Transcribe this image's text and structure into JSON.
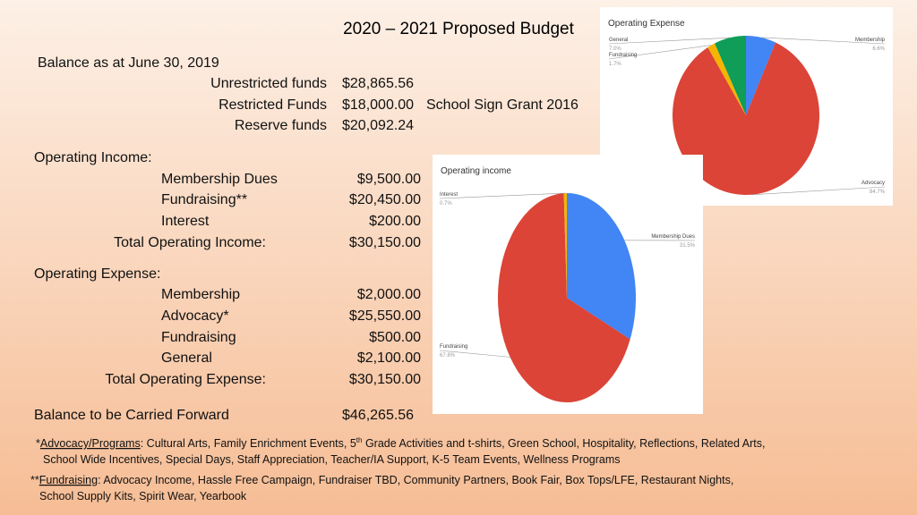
{
  "title": "2020 – 2021 Proposed Budget",
  "balance": {
    "heading": "Balance as at June 30, 2019",
    "items": [
      {
        "label": "Unrestricted funds",
        "amount": "$28,865.56"
      },
      {
        "label": "Restricted Funds",
        "amount": "$18,000.00",
        "note": "School Sign Grant 2016"
      },
      {
        "label": "Reserve funds",
        "amount": "$20,092.24"
      }
    ]
  },
  "income": {
    "heading": "Operating Income:",
    "items": [
      {
        "label": "Membership Dues",
        "amount": "$9,500.00"
      },
      {
        "label": "Fundraising**",
        "amount": "$20,450.00"
      },
      {
        "label": "Interest",
        "amount": "$200.00"
      }
    ],
    "total": {
      "label": "Total Operating Income:",
      "amount": "$30,150.00"
    }
  },
  "expense": {
    "heading": "Operating Expense:",
    "items": [
      {
        "label": "Membership",
        "amount": "$2,000.00"
      },
      {
        "label": "Advocacy*",
        "amount": "$25,550.00"
      },
      {
        "label": "Fundraising",
        "amount": "$500.00"
      },
      {
        "label": "General",
        "amount": "$2,100.00"
      }
    ],
    "total": {
      "label": "Total Operating Expense:",
      "amount": "$30,150.00"
    }
  },
  "carry_forward": {
    "label": "Balance to be Carried Forward",
    "amount": "$46,265.56"
  },
  "footnotes": [
    {
      "marker": "*",
      "label": "Advocacy/Programs",
      "line1": [
        ": Cultural Arts, Family Enrichment Events, 5",
        "th",
        " Grade Activities and t-shirts, Green School, Hospitality, Reflections, Related Arts,"
      ],
      "line2": "School Wide Incentives, Special Days, Staff Appreciation, Teacher/IA Support, K-5 Team Events, Wellness Programs"
    },
    {
      "marker": "**",
      "label": "Fundraising",
      "line1": [
        ": Advocacy Income, Hassle Free Campaign, Fundraiser TBD, Community Partners, Book Fair, Box Tops/LFE, Restaurant Nights,"
      ],
      "line2": "School Supply Kits, Spirit Wear, Yearbook"
    }
  ],
  "chart_data": [
    {
      "type": "pie",
      "title": "Operating Expense",
      "categories": [
        "Membership",
        "Advocacy",
        "Fundraising",
        "General"
      ],
      "values": [
        6.6,
        84.7,
        1.7,
        7.0
      ],
      "value_labels": [
        "6.6%",
        "84.7%",
        "1.7%",
        "7.0%"
      ],
      "colors": [
        "#4285f4",
        "#db4437",
        "#f4b400",
        "#0f9d58"
      ]
    },
    {
      "type": "pie",
      "title": "Operating income",
      "categories": [
        "Membership Dues",
        "Fundraising",
        "Interest"
      ],
      "values": [
        31.5,
        67.8,
        0.7
      ],
      "value_labels": [
        "31.5%",
        "67.8%",
        "0.7%"
      ],
      "colors": [
        "#4285f4",
        "#db4437",
        "#f4b400"
      ]
    }
  ]
}
